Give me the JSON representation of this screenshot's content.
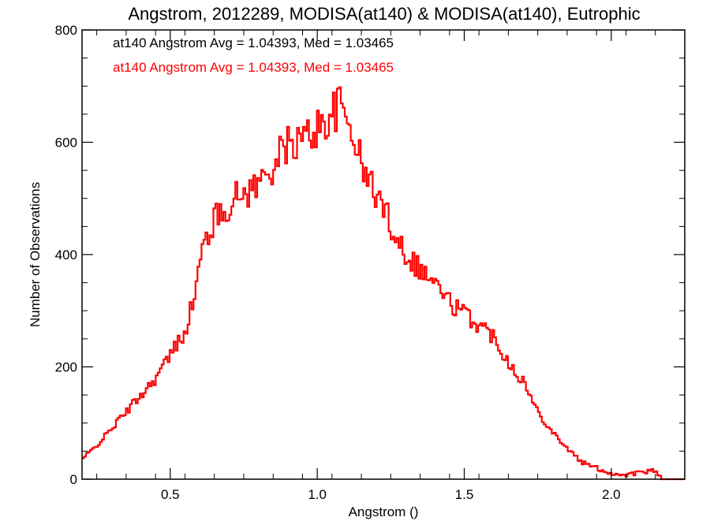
{
  "chart_data": {
    "type": "histogram",
    "title": "Angstrom, 2012289, MODISA(at140) & MODISA(at140), Eutrophic",
    "xlabel": "Angstrom ()",
    "ylabel": "Number of Observations",
    "xlim": [
      0.2,
      2.25
    ],
    "ylim": [
      0,
      800
    ],
    "xticks": [
      0.5,
      1.0,
      1.5,
      2.0
    ],
    "xtick_labels": [
      "0.5",
      "1.0",
      "1.5",
      "2.0"
    ],
    "yticks": [
      0,
      200,
      400,
      600,
      800
    ],
    "ytick_labels": [
      "0",
      "200",
      "400",
      "600",
      "800"
    ],
    "grid": false,
    "legend_position": "top-left",
    "bin_width": 0.00677,
    "annotations": [
      {
        "text": "at140 Angstrom Avg = 1.04393, Med = 1.03465",
        "color": "#000000"
      },
      {
        "text": "at140 Angstrom Avg = 1.04393, Med = 1.03465",
        "color": "#ff0000"
      }
    ],
    "series": [
      {
        "color": "#ff0000",
        "x": [
          0.2,
          0.25,
          0.3,
          0.35,
          0.4,
          0.45,
          0.5,
          0.55,
          0.58,
          0.6,
          0.62,
          0.65,
          0.7,
          0.75,
          0.8,
          0.85,
          0.9,
          0.95,
          1.0,
          1.05,
          1.08,
          1.1,
          1.13,
          1.15,
          1.2,
          1.25,
          1.3,
          1.35,
          1.4,
          1.45,
          1.5,
          1.55,
          1.6,
          1.65,
          1.7,
          1.75,
          1.8,
          1.85,
          1.9,
          1.95,
          2.0,
          2.05,
          2.1,
          2.15,
          2.17,
          2.25
        ],
        "y": [
          35,
          60,
          90,
          120,
          150,
          180,
          220,
          265,
          320,
          380,
          430,
          460,
          490,
          510,
          525,
          560,
          595,
          605,
          625,
          650,
          665,
          640,
          610,
          555,
          510,
          455,
          405,
          375,
          350,
          315,
          295,
          275,
          255,
          210,
          175,
          120,
          85,
          55,
          30,
          20,
          10,
          8,
          12,
          15,
          0,
          0
        ]
      }
    ]
  }
}
